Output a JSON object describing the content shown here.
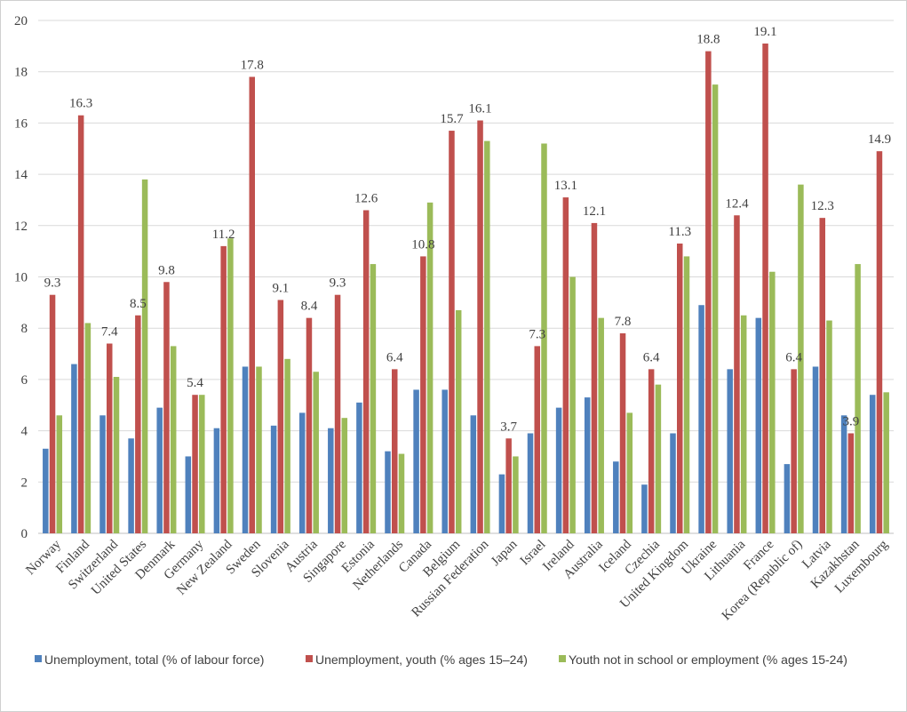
{
  "chart_data": {
    "type": "bar",
    "title": "",
    "xlabel": "",
    "ylabel": "",
    "ylim": [
      0,
      20
    ],
    "yticks": [
      0,
      2,
      4,
      6,
      8,
      10,
      12,
      14,
      16,
      18,
      20
    ],
    "grid": "horizontal",
    "legend_position": "bottom",
    "categories": [
      "Norway",
      "Finland",
      "Switzerland",
      "United States",
      "Denmark",
      "Germany",
      "New Zealand",
      "Sweden",
      "Slovenia",
      "Austria",
      "Singapore",
      "Estonia",
      "Netherlands",
      "Canada",
      "Belgium",
      "Russian Federation",
      "Japan",
      "Israel",
      "Ireland",
      "Australia",
      "Iceland",
      "Czechia",
      "United Kingdom",
      "Ukraine",
      "Lithuania",
      "France",
      "Korea (Republic of)",
      "Latvia",
      "Kazakhstan",
      "Luxembourg"
    ],
    "series": [
      {
        "name": "Unemployment, total (% of labour force)",
        "color": "#4f81bd",
        "values": [
          3.3,
          6.6,
          4.6,
          3.7,
          4.9,
          3.0,
          4.1,
          6.5,
          4.2,
          4.7,
          4.1,
          5.1,
          3.2,
          5.6,
          5.6,
          4.6,
          2.3,
          3.9,
          4.9,
          5.3,
          2.8,
          1.9,
          3.9,
          8.9,
          6.4,
          8.4,
          2.7,
          6.5,
          4.6,
          5.4
        ]
      },
      {
        "name": "Unemployment, youth (% ages 15–24)",
        "color": "#c0504d",
        "values": [
          9.3,
          16.3,
          7.4,
          8.5,
          9.8,
          5.4,
          11.2,
          17.8,
          9.1,
          8.4,
          9.3,
          12.6,
          6.4,
          10.8,
          15.7,
          16.1,
          3.7,
          7.3,
          13.1,
          12.1,
          7.8,
          6.4,
          11.3,
          18.8,
          12.4,
          19.1,
          6.4,
          12.3,
          3.9,
          14.9
        ],
        "labels": [
          "9.3",
          "16.3",
          "7.4",
          "8.5",
          "9.8",
          "5.4",
          "11.2",
          "17.8",
          "9.1",
          "8.4",
          "9.3",
          "12.6",
          "6.4",
          "10.8",
          "15.7",
          "16.1",
          "3.7",
          "7.3",
          "13.1",
          "12.1",
          "7.8",
          "6.4",
          "11.3",
          "18.8",
          "12.4",
          "19.1",
          "6.4",
          "12.3",
          "3.9",
          "14.9"
        ]
      },
      {
        "name": "Youth not in school or employment (% ages 15-24)",
        "color": "#9bbb59",
        "values": [
          4.6,
          8.2,
          6.1,
          13.8,
          7.3,
          5.4,
          11.5,
          6.5,
          6.8,
          6.3,
          4.5,
          10.5,
          3.1,
          12.9,
          8.7,
          15.3,
          3.0,
          15.2,
          10.0,
          8.4,
          4.7,
          5.8,
          10.8,
          17.5,
          8.5,
          10.2,
          13.6,
          8.3,
          10.5,
          5.5
        ]
      }
    ]
  }
}
